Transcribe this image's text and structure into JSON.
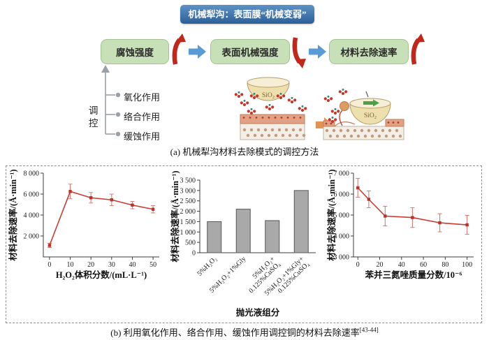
{
  "figure": {
    "header": "机械犁沟：表面膜“机械变弱”",
    "flow": {
      "boxes": [
        {
          "label": "腐蚀强度",
          "trend": "up"
        },
        {
          "label": "表面机械强度",
          "trend": "down"
        },
        {
          "label": "材料去除速率",
          "trend": "up"
        }
      ]
    },
    "regulation": {
      "label": "调控",
      "items": [
        "氧化作用",
        "络合作用",
        "缓蚀作用"
      ]
    },
    "illustration": {
      "particle_label": "SiO₂"
    },
    "caption_a": "(a) 机械犁沟材料去除模式的调控方法",
    "caption_b": "(b) 利用氧化作用、络合作用、缓蚀作用调控铜的材料去除速率",
    "caption_b_ref": "[43-44]"
  },
  "colors": {
    "header_blue": "#2f66a0",
    "box_green": "#c8e0b8",
    "arrow_red": "#c1271b",
    "arrow_blue": "#5b9bd5",
    "line_red": "#c93a30",
    "bar_gray": "#a9a9a9"
  },
  "chart_data": [
    {
      "type": "line",
      "title": "",
      "xlabel": "H₂O₂体积分数/(mL·L⁻¹)",
      "ylabel": "材料去除速率/(Å·min⁻¹)",
      "x": [
        0,
        10,
        20,
        30,
        40,
        50
      ],
      "y": [
        1100,
        6250,
        5650,
        5450,
        4950,
        4550
      ],
      "yerr": [
        200,
        700,
        500,
        550,
        350,
        350
      ],
      "xlim": [
        -3,
        53
      ],
      "ylim": [
        0,
        8000
      ],
      "xticks": [
        0,
        10,
        20,
        30,
        40,
        50
      ],
      "yticks": [
        {
          "v": 2000,
          "label": "2 000"
        },
        {
          "v": 4000,
          "label": "4 000"
        },
        {
          "v": 6000,
          "label": "6 000"
        },
        {
          "v": 8000,
          "label": "8 000"
        }
      ],
      "grid": false,
      "legend": "none"
    },
    {
      "type": "bar",
      "title": "",
      "xlabel": "抛光液组分",
      "ylabel": "材料去除速率/(Å·min⁻¹)",
      "categories": [
        [
          "5%H₂O₂"
        ],
        [
          "5%H₂O₂+1%Gly"
        ],
        [
          "5%H₂O₂+",
          "0.125%CuSO₄"
        ],
        [
          "5%H₂O₂+1%Gly+",
          "0.125%CuSO₄"
        ]
      ],
      "values": [
        1500,
        2100,
        1550,
        3000
      ],
      "xlim": [
        0,
        4
      ],
      "ylim": [
        0,
        3500
      ],
      "yticks": [
        {
          "v": 0,
          "label": "0"
        },
        {
          "v": 500,
          "label": "500"
        },
        {
          "v": 1000,
          "label": "1 000"
        },
        {
          "v": 1500,
          "label": "1 500"
        },
        {
          "v": 2000,
          "label": "2 000"
        },
        {
          "v": 2500,
          "label": "2 500"
        },
        {
          "v": 3000,
          "label": "3 000"
        },
        {
          "v": 3500,
          "label": "3 500"
        }
      ],
      "grid": false,
      "legend": "none"
    },
    {
      "type": "line",
      "title": "",
      "xlabel": "苯并三氮唑质量分数/10⁻⁶",
      "ylabel": "材料去除速率/(Å·min⁻¹)",
      "x": [
        0,
        10,
        25,
        50,
        75,
        100
      ],
      "y": [
        6300,
        5750,
        4950,
        4880,
        4630,
        4530
      ],
      "yerr": [
        450,
        400,
        470,
        470,
        430,
        450
      ],
      "xlim": [
        -4,
        106
      ],
      "ylim": [
        3000,
        7000
      ],
      "xticks": [
        0,
        20,
        40,
        60,
        80,
        100
      ],
      "yticks": [
        {
          "v": 3000,
          "label": "3 000"
        },
        {
          "v": 4000,
          "label": "4 000"
        },
        {
          "v": 5000,
          "label": "5 000"
        },
        {
          "v": 6000,
          "label": "6 000"
        },
        {
          "v": 7000,
          "label": "7 000"
        }
      ],
      "grid": false,
      "legend": "none"
    }
  ]
}
